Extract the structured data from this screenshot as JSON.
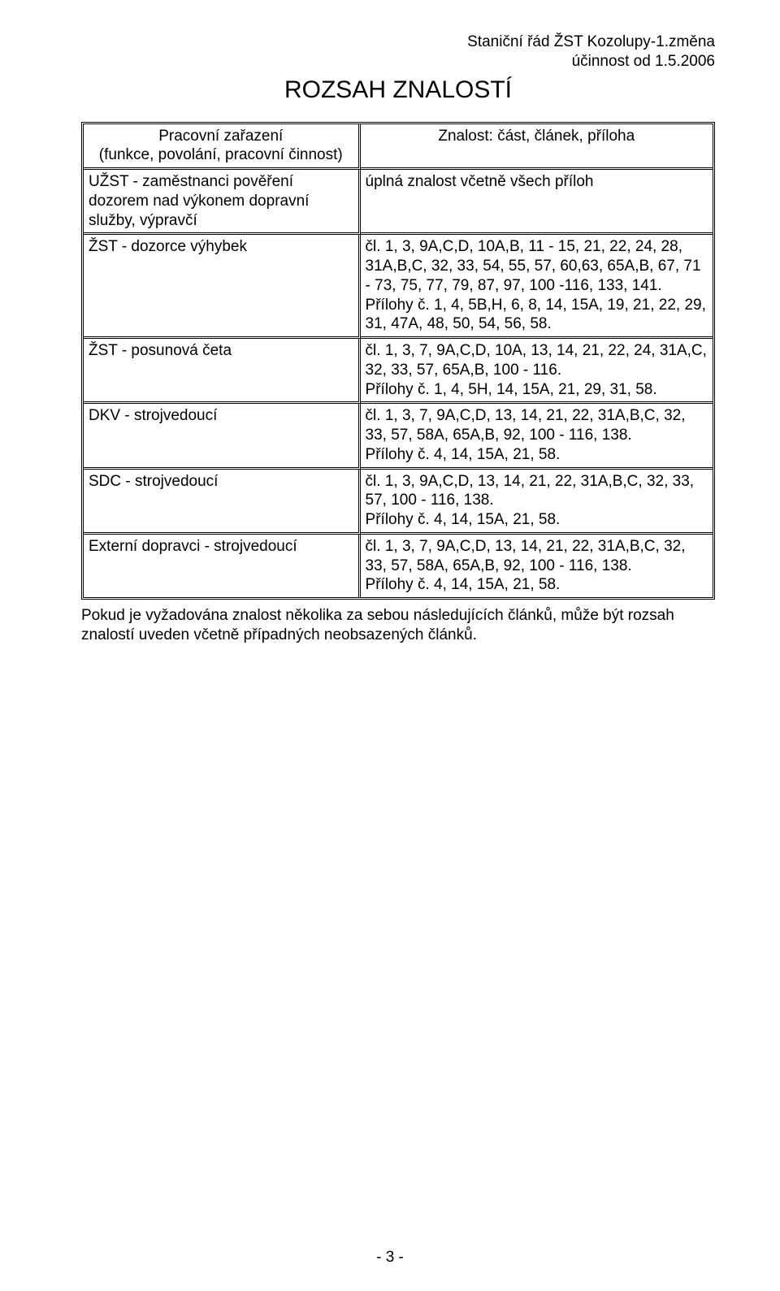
{
  "header": {
    "line1": "Staniční řád ŽST Kozolupy-1.změna",
    "line2": "účinnost od 1.5.2006"
  },
  "title": "ROZSAH ZNALOSTÍ",
  "table": {
    "head_left": "Pracovní zařazení\n(funkce, povolání, pracovní činnost)",
    "head_right": "Znalost: část, článek, příloha",
    "rows": [
      {
        "left": "UŽST - zaměstnanci pověření dozorem nad výkonem dopravní služby, výpravčí",
        "right": "úplná znalost včetně všech příloh"
      },
      {
        "left": "ŽST - dozorce výhybek",
        "right": "čl. 1, 3, 9A,C,D, 10A,B, 11 - 15, 21, 22, 24, 28, 31A,B,C, 32, 33, 54, 55, 57, 60,63, 65A,B, 67, 71 - 73, 75, 77, 79, 87, 97, 100 -116, 133, 141. Přílohy č. 1, 4, 5B,H, 6, 8, 14, 15A, 19, 21, 22, 29, 31, 47A, 48, 50, 54, 56, 58."
      },
      {
        "left": "ŽST - posunová četa",
        "right": "čl. 1, 3, 7, 9A,C,D, 10A, 13, 14, 21, 22, 24, 31A,C, 32, 33, 57, 65A,B, 100 - 116.\nPřílohy č. 1, 4, 5H, 14, 15A, 21, 29, 31, 58."
      },
      {
        "left": "DKV - strojvedoucí",
        "right": "čl. 1, 3, 7, 9A,C,D, 13, 14, 21, 22, 31A,B,C, 32, 33, 57, 58A, 65A,B, 92, 100 - 116, 138.\nPřílohy č. 4, 14, 15A, 21, 58."
      },
      {
        "left": "SDC - strojvedoucí",
        "right": "čl. 1, 3, 9A,C,D, 13, 14, 21, 22, 31A,B,C, 32, 33, 57, 100 - 116, 138.\nPřílohy č. 4, 14, 15A, 21, 58."
      },
      {
        "left": "Externí dopravci - strojvedoucí",
        "right": "čl. 1, 3, 7, 9A,C,D, 13, 14, 21, 22, 31A,B,C, 32, 33, 57, 58A, 65A,B, 92, 100 - 116, 138.\nPřílohy č. 4, 14, 15A, 21, 58."
      }
    ]
  },
  "footnote": "Pokud je vyžadována znalost několika za sebou následujících článků, může být rozsah znalostí uveden včetně případných neobsazených článků.",
  "pagenum": "- 3 -",
  "colors": {
    "text": "#000000",
    "background": "#ffffff",
    "border": "#000000"
  },
  "fonts": {
    "body_size_pt": 14,
    "title_size_pt": 22,
    "family": "Arial"
  }
}
